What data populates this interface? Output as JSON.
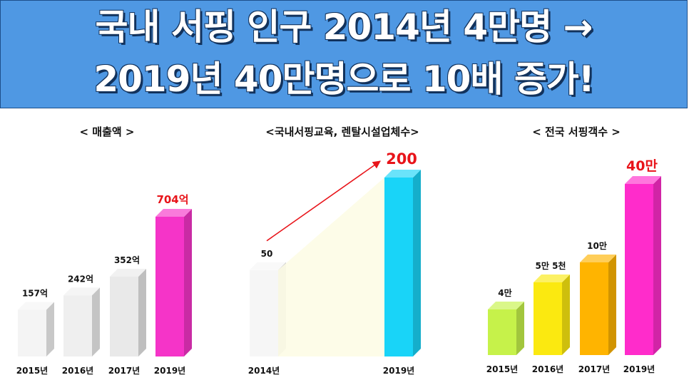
{
  "banner": {
    "line1": "국내 서핑 인구 2014년 4만명 →",
    "line2": "2019년 40만명으로 10배 증가!"
  },
  "chart_data": [
    {
      "type": "bar",
      "title": "< 매출액 >",
      "categories": [
        "2015년",
        "2016년",
        "2017년",
        "2019년"
      ],
      "values": [
        157,
        242,
        352,
        704
      ],
      "value_labels": [
        "157억",
        "242억",
        "352억",
        "704억"
      ],
      "colors": [
        "#f4f4f4",
        "#efefef",
        "#e9e9e9",
        "#f534c8"
      ],
      "highlight_color": "#e8141a",
      "ylim": [
        0,
        704
      ]
    },
    {
      "type": "bar",
      "title": "<국내서핑교육, 렌탈시설업체수>",
      "categories": [
        "2014년",
        "2019년"
      ],
      "values": [
        50,
        200
      ],
      "value_labels": [
        "50",
        "200"
      ],
      "colors": [
        "#f6f6f6",
        "#19d4f8"
      ],
      "highlight_color": "#e8141a",
      "ylim": [
        0,
        200
      ]
    },
    {
      "type": "bar",
      "title": "< 전국 서핑객수 >",
      "categories": [
        "2015년",
        "2016년",
        "2017년",
        "2019년"
      ],
      "values": [
        4,
        5.5,
        10,
        40
      ],
      "value_labels": [
        "4만",
        "5만 5천",
        "10만",
        "40만"
      ],
      "colors": [
        "#c6f24a",
        "#fbe910",
        "#ffb400",
        "#ff2ccb"
      ],
      "highlight_color": "#e8141a"
    }
  ]
}
